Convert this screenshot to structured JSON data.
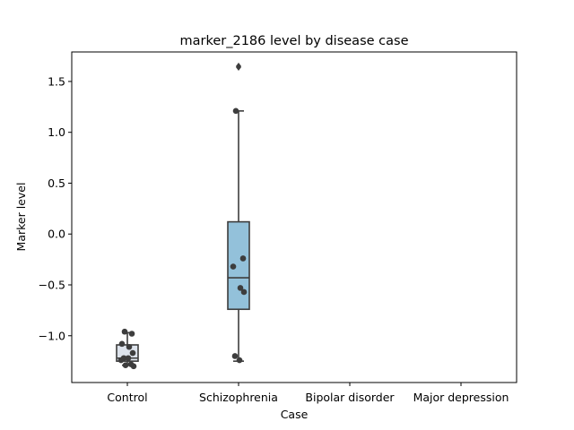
{
  "chart_data": {
    "type": "box",
    "title": "marker_2186 level by disease case",
    "xlabel": "Case",
    "ylabel": "Marker level",
    "categories": [
      "Control",
      "Schizophrenia",
      "Bipolar disorder",
      "Major depression"
    ],
    "ylim": [
      -1.46,
      1.79
    ],
    "yticks": [
      -1.0,
      -0.5,
      0.0,
      0.5,
      1.0,
      1.5
    ],
    "ytick_labels": [
      "−1.0",
      "−0.5",
      "0.0",
      "0.5",
      "1.0",
      "1.5"
    ],
    "grid": false,
    "colors": {
      "control_box": "#dde3ec",
      "schizophrenia_box": "#93c1da",
      "box_edge": "#3d3d3d",
      "points": "#3d3d3d"
    },
    "boxes": [
      {
        "category": "Control",
        "whisker_low": -1.29,
        "q1": -1.25,
        "median": -1.22,
        "q3": -1.09,
        "whisker_high": -0.97,
        "fliers": []
      },
      {
        "category": "Schizophrenia",
        "whisker_low": -1.25,
        "q1": -0.74,
        "median": -0.43,
        "q3": 0.12,
        "whisker_high": 1.21,
        "fliers": [
          1.65,
          1.64
        ]
      }
    ],
    "points": [
      {
        "category": "Control",
        "values": [
          -0.96,
          -0.98,
          -1.08,
          -1.11,
          -1.17,
          -1.22,
          -1.22,
          -1.24,
          -1.28,
          -1.29,
          -1.3
        ]
      },
      {
        "category": "Schizophrenia",
        "values": [
          1.21,
          -0.24,
          -0.32,
          -0.53,
          -0.57,
          -1.2,
          -1.24
        ]
      }
    ]
  }
}
